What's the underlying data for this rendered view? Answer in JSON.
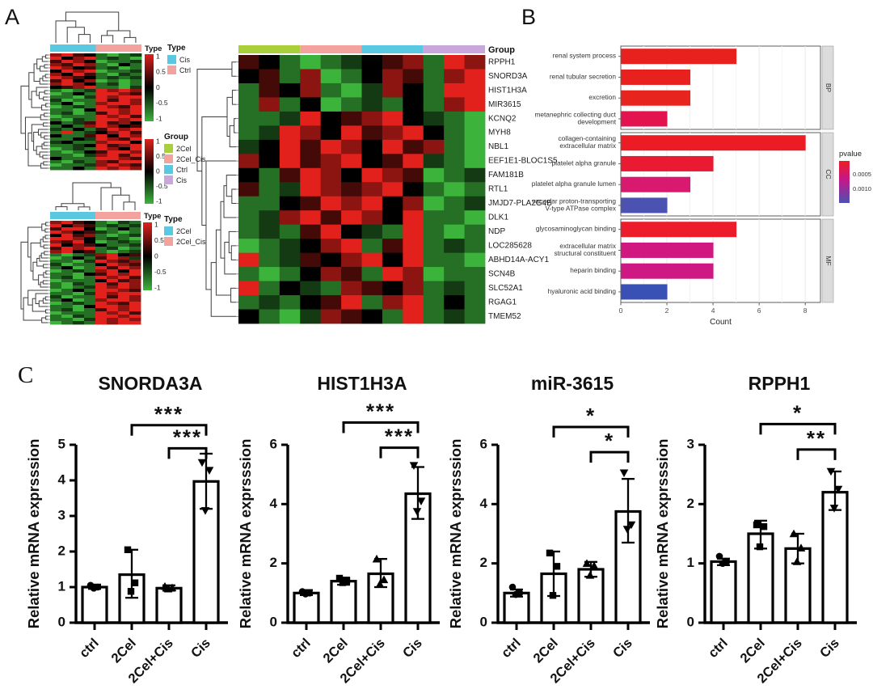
{
  "panels": {
    "a_label": "A",
    "b_label": "B",
    "c_label": "C"
  },
  "colors": {
    "heat_red": "#E2201C",
    "heat_green": "#3CB43C",
    "heat_black": "#000000",
    "cyan": "#5BC8E2",
    "salmon": "#F4A29D",
    "yellowgreen": "#A9CF3A",
    "lavender": "#C9A6DC",
    "strip_bg": "#DCDCDC",
    "grid_major": "#E9E9E9",
    "grid_minor": "#F4F4F4"
  },
  "panel_a": {
    "heatmap_top": {
      "type_label": "Type",
      "annotation": [
        {
          "color": "#5BC8E2",
          "span": 4
        },
        {
          "color": "#F4A29D",
          "span": 4
        }
      ],
      "colorbar_ticks": [
        "1",
        "0.5",
        "0",
        "-0.5",
        "-1"
      ],
      "legend": {
        "title": "Type",
        "items": [
          {
            "label": "Cis",
            "color": "#5BC8E2"
          },
          {
            "label": "Ctrl",
            "color": "#F4A29D"
          }
        ]
      },
      "rows": [
        "rRdkgGge",
        "RkrRgegG",
        "dRrkGgge",
        "rdRrgGkg",
        "RrkdgeGg",
        "kRrRGgge",
        "rkRdgGeg",
        "Rrdkgege",
        "dRkrGgGg",
        "rRrkgeGg",
        "kdrRggGe",
        "gGgeRrRr",
        "GgkgRRrd",
        "ggGeRrRR",
        "eGggRdRr",
        "gkGgrRRr",
        "GgegRrdR",
        "ggGkRRrR",
        "geGgdRrR",
        "GgggRrRd",
        "gGegRRrR",
        "kgedRdrk",
        "gkgrRrkd",
        "egkgdRrR",
        "gRgekrRd",
        "kggdRkRr",
        "ggkeRrdR",
        "ekggrRRk",
        "ggekRdrR",
        "GgegRrkR",
        "gGgkdRRr",
        "ggGerRdR",
        "kgggRRrd",
        "gGegrdRR",
        "GggerRrd",
        "ggkgRrRr"
      ]
    },
    "group_legend": {
      "title": "Group",
      "colorbar_ticks": [
        "1",
        "0.5",
        "0",
        "-0.5",
        "-1"
      ],
      "items": [
        {
          "label": "2Cel",
          "color": "#A9CF3A"
        },
        {
          "label": "2Cel_Cis",
          "color": "#F4A29D"
        },
        {
          "label": "Ctrl",
          "color": "#5BC8E2"
        },
        {
          "label": "Cis",
          "color": "#C9A6DC"
        }
      ]
    },
    "heatmap_bottom": {
      "type_label": "Type",
      "annotation": [
        {
          "color": "#5BC8E2",
          "span": 4
        },
        {
          "color": "#F4A29D",
          "span": 4
        }
      ],
      "colorbar_ticks": [
        "1",
        "0.5",
        "0",
        "-0.5",
        "-1"
      ],
      "legend": {
        "title": "Type",
        "items": [
          {
            "label": "2Cel",
            "color": "#5BC8E2"
          },
          {
            "label": "2Cel_Cis",
            "color": "#F4A29D"
          }
        ]
      },
      "rows": [
        "rRdkgGeg",
        "Rkrdgege",
        "dRRkGgkg",
        "RrkdegGg",
        "kRdrgGge",
        "RRrkgegG",
        "rdRkGgeg",
        "Rkrdkgge",
        "dRrRgeGg",
        "rRkdgGge",
        "gGgerRkd",
        "GgkgdRre",
        "ggGeRrdr",
        "eGggkRrd",
        "gkGgRdRr",
        "GgegrRkR",
        "ggGkdRrR",
        "geGgRrRd",
        "GgggkRdr",
        "gGegRdRr",
        "gGgeRrRr",
        "GgkgRRrd",
        "ggGeRrRR",
        "eGggRdRr",
        "gkGgrRRr",
        "GgegRrdR",
        "ggGkRRrR",
        "geGgdRrR",
        "GgggRrRd",
        "gGegRRrR",
        "ggGeRrRr",
        "GgegRrRR"
      ]
    },
    "heatmap_main": {
      "group_label": "Group",
      "annotation": [
        {
          "color": "#A9CF3A",
          "span": 3
        },
        {
          "color": "#F4A29D",
          "span": 3
        },
        {
          "color": "#5BC8E2",
          "span": 3
        },
        {
          "color": "#C9A6DC",
          "span": 3
        }
      ],
      "genes": [
        "RPPH1",
        "SNORD3A",
        "HIST1H3A",
        "MIR3615",
        "KCNQ2",
        "MYH8",
        "NBL1",
        "EEF1E1-BLOC1S5",
        "FAM181B",
        "RTL1",
        "JMJD7-PLA2G4B",
        "DLK1",
        "NDP",
        "LOC285628",
        "ABHD14A-ACY1",
        "SCN4B",
        "SLC52A1",
        "RGAG1",
        "TMEM52"
      ],
      "rows": [
        "dkgGgekdrgRr",
        "kdgrGgkrdgrR",
        "gdkrgGerkgRR",
        "grgkGgegkgrR",
        "ggeRkdrRkegG",
        "geRrkRdrRkgG",
        "ekRdRrkRdrgG",
        "rkRdrRkdRegG",
        "kgdRrkRrdGge",
        "dgeRrdrRkgGg",
        "ggkdRrRkrGge",
        "gerRdRrkRggG",
        "gegdRkegRgGg",
        "GgekrRgdRgeg",
        "RgedkrRkRggG",
        "gGgkrdgRrGgg",
        "Rgkegrdkrgeg",
        "gegkdRgrRgkg",
        "kgGerdkgRgeg"
      ]
    }
  },
  "chart_data": [
    {
      "id": "go_enrichment",
      "type": "bar",
      "orientation": "horizontal",
      "xlabel": "Count",
      "xlim": [
        0,
        8.66
      ],
      "xticks": [
        0,
        2,
        4,
        6,
        8
      ],
      "grid": true,
      "legend": {
        "title": "pvalue",
        "ticks": [
          "0.0005",
          "0.0010"
        ],
        "top_color": "#EE1D23",
        "mid_color": "#C4188A",
        "bottom_color": "#4B52B2"
      },
      "facets": [
        {
          "label": "BP",
          "terms": [
            {
              "name": "renal system process",
              "count": 5,
              "color": "#E8201E"
            },
            {
              "name": "renal tubular secretion",
              "count": 3,
              "color": "#E8201E"
            },
            {
              "name": "excretion",
              "count": 3,
              "color": "#E8241E"
            },
            {
              "name": "metanephric collecting duct\ndevelopment",
              "count": 2,
              "color": "#E31350"
            }
          ]
        },
        {
          "label": "CC",
          "terms": [
            {
              "name": "collagen-containing\nextracellular matrix",
              "count": 8,
              "color": "#ED1C24"
            },
            {
              "name": "platelet alpha granule",
              "count": 4,
              "color": "#EA1A33"
            },
            {
              "name": "platelet alpha granule lumen",
              "count": 3,
              "color": "#D8196F"
            },
            {
              "name": "vacuolar proton-transporting\nV-type ATPase complex",
              "count": 2,
              "color": "#4B52B2"
            }
          ]
        },
        {
          "label": "MF",
          "terms": [
            {
              "name": "glycosaminoglycan binding",
              "count": 5,
              "color": "#EC1C2B"
            },
            {
              "name": "extracellular matrix\nstructural constituent",
              "count": 4,
              "color": "#D01880"
            },
            {
              "name": "heparin binding",
              "count": 4,
              "color": "#CE1882"
            },
            {
              "name": "hyaluronic acid binding",
              "count": 2,
              "color": "#3950B5"
            }
          ]
        }
      ]
    },
    {
      "id": "qpcr_snorda3a",
      "type": "bar",
      "title": "SNORDA3A",
      "ylabel": "Relative mRNA exprsssion",
      "ylim": [
        0,
        5
      ],
      "yticks": [
        0,
        1,
        2,
        3,
        4,
        5
      ],
      "categories": [
        "ctrl",
        "2Cel",
        "2Cel+Cis",
        "Cis"
      ],
      "markers": [
        "circle",
        "square",
        "triangle-up",
        "triangle-down"
      ],
      "means": [
        1.0,
        1.35,
        0.97,
        3.97
      ],
      "err_low": [
        0.95,
        0.7,
        0.9,
        3.2
      ],
      "err_high": [
        1.07,
        2.05,
        1.05,
        4.75
      ],
      "points": [
        [
          1.05,
          1.0,
          0.97
        ],
        [
          2.05,
          1.12,
          0.88
        ],
        [
          1.02,
          0.98,
          0.95
        ],
        [
          4.5,
          4.28,
          3.15
        ]
      ],
      "brackets": [
        {
          "from": 1,
          "to": 3,
          "label": "***",
          "y": 5.55
        },
        {
          "from": 2,
          "to": 3,
          "label": "***",
          "y": 4.9
        }
      ]
    },
    {
      "id": "qpcr_hist1h3a",
      "type": "bar",
      "title": "HIST1H3A",
      "ylabel": "Relative mRNA exprsssion",
      "ylim": [
        0,
        6
      ],
      "yticks": [
        0,
        2,
        4,
        6
      ],
      "categories": [
        "ctrl",
        "2Cel",
        "2Cel+Cis",
        "Cis"
      ],
      "markers": [
        "circle",
        "square",
        "triangle-up",
        "triangle-down"
      ],
      "means": [
        1.0,
        1.4,
        1.65,
        4.35
      ],
      "err_low": [
        0.93,
        1.28,
        1.2,
        3.5
      ],
      "err_high": [
        1.1,
        1.52,
        2.15,
        5.25
      ],
      "points": [
        [
          1.05,
          1.0,
          0.97
        ],
        [
          1.5,
          1.42,
          1.35
        ],
        [
          2.15,
          1.45,
          1.3
        ],
        [
          5.3,
          4.1,
          3.75
        ]
      ],
      "brackets": [
        {
          "from": 1,
          "to": 3,
          "label": "***",
          "y": 6.75
        },
        {
          "from": 2,
          "to": 3,
          "label": "***",
          "y": 5.9
        }
      ]
    },
    {
      "id": "qpcr_mir3615",
      "type": "bar",
      "title": "miR-3615",
      "ylabel": "Relative mRNA exprsssion",
      "ylim": [
        0,
        6
      ],
      "yticks": [
        0,
        2,
        4,
        6
      ],
      "categories": [
        "ctrl",
        "2Cel",
        "2Cel+Cis",
        "Cis"
      ],
      "markers": [
        "circle",
        "square",
        "triangle-up",
        "triangle-down"
      ],
      "means": [
        1.0,
        1.65,
        1.8,
        3.75
      ],
      "err_low": [
        0.88,
        0.9,
        1.55,
        2.7
      ],
      "err_high": [
        1.12,
        2.4,
        2.05,
        4.85
      ],
      "points": [
        [
          1.2,
          1.0,
          0.95
        ],
        [
          2.35,
          1.9,
          0.92
        ],
        [
          2.0,
          1.92,
          1.6
        ],
        [
          5.05,
          3.3,
          3.15
        ]
      ],
      "brackets": [
        {
          "from": 1,
          "to": 3,
          "label": "*",
          "y": 6.6
        },
        {
          "from": 2,
          "to": 3,
          "label": "*",
          "y": 5.75
        }
      ]
    },
    {
      "id": "qpcr_rpph1",
      "type": "bar",
      "title": "RPPH1",
      "ylabel": "Relative mRNA exprsssion",
      "ylim": [
        0,
        3
      ],
      "yticks": [
        0,
        1,
        2,
        3
      ],
      "categories": [
        "ctrl",
        "2Cel",
        "2Cel+Cis",
        "Cis"
      ],
      "markers": [
        "circle",
        "square",
        "triangle-up",
        "triangle-down"
      ],
      "means": [
        1.03,
        1.5,
        1.25,
        2.2
      ],
      "err_low": [
        0.97,
        1.25,
        1.0,
        1.9
      ],
      "err_high": [
        1.08,
        1.72,
        1.5,
        2.55
      ],
      "points": [
        [
          1.12,
          1.03,
          1.0
        ],
        [
          1.65,
          1.62,
          1.28
        ],
        [
          1.5,
          1.26,
          1.03
        ],
        [
          2.55,
          2.25,
          1.93
        ]
      ],
      "brackets": [
        {
          "from": 1,
          "to": 3,
          "label": "*",
          "y": 3.35
        },
        {
          "from": 2,
          "to": 3,
          "label": "**",
          "y": 2.92
        }
      ]
    }
  ]
}
